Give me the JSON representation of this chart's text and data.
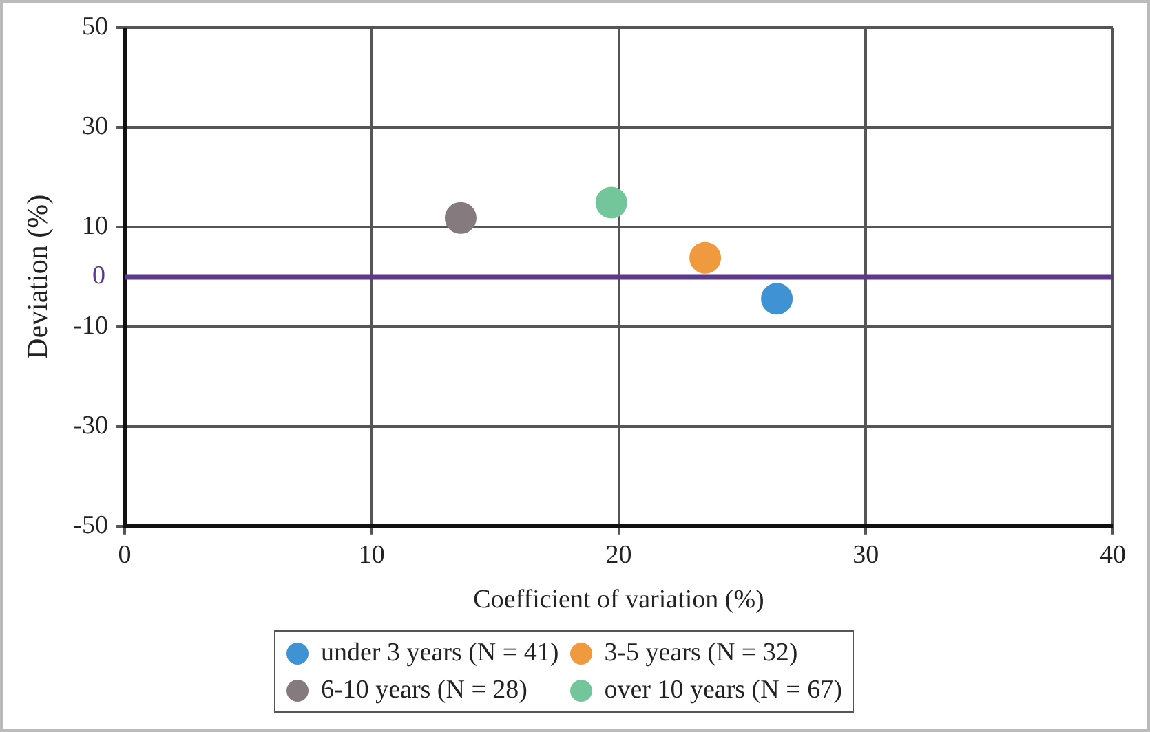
{
  "chart_data": {
    "type": "scatter",
    "xlabel": "Coefficient of variation (%)",
    "ylabel": "Deviation (%)",
    "xlim": [
      0,
      40
    ],
    "xticks": [
      0,
      10,
      20,
      30,
      40
    ],
    "ylim": [
      -50,
      50
    ],
    "yticks": [
      -50,
      -30,
      -10,
      10,
      30,
      50
    ],
    "grid": true,
    "legend": "bottom",
    "marker": "circle",
    "ref_lines": [
      {
        "axis": "y",
        "value": 0,
        "label": "0",
        "color": "#5b3a8a"
      }
    ],
    "series": [
      {
        "name": "under 3 years (N = 41)",
        "color": "#3f93d2",
        "x": [
          26.4
        ],
        "values": [
          -4.4
        ]
      },
      {
        "name": "3-5 years (N = 32)",
        "color": "#f09a40",
        "x": [
          23.5
        ],
        "values": [
          3.8
        ]
      },
      {
        "name": "6-10 years (N = 28)",
        "color": "#857a7e",
        "x": [
          13.6
        ],
        "values": [
          11.8
        ]
      },
      {
        "name": "over 10 years (N = 67)",
        "color": "#72c69a",
        "x": [
          19.7
        ],
        "values": [
          14.9
        ]
      }
    ]
  }
}
